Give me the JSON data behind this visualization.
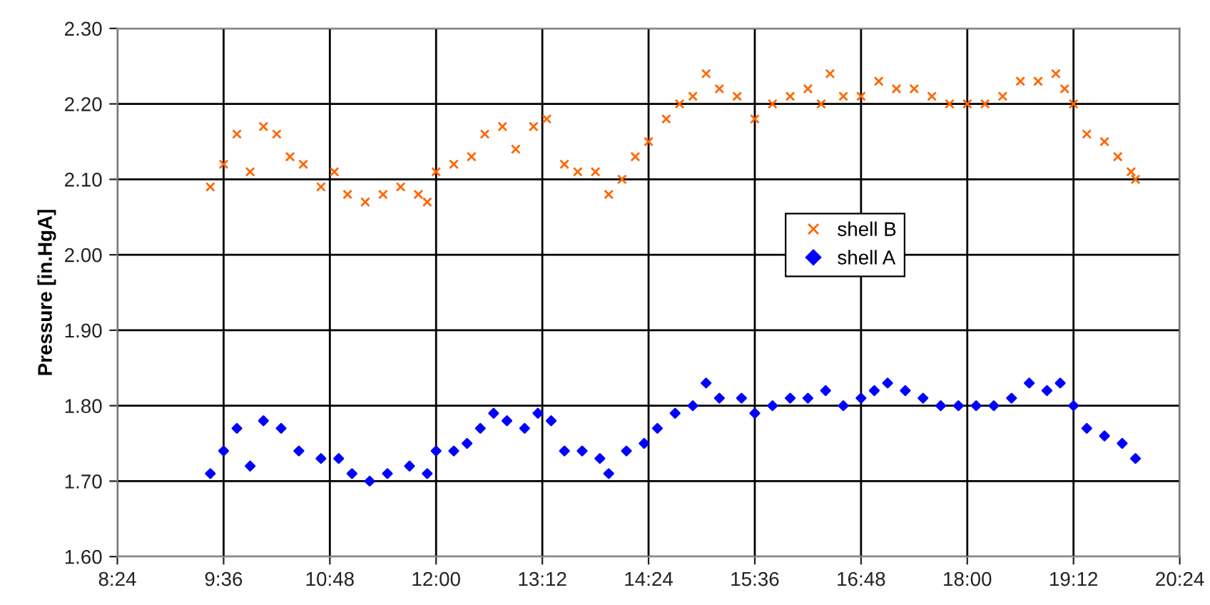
{
  "chart_data": {
    "type": "scatter",
    "ylabel": "Pressure [in.HgA]",
    "grid": true,
    "legend": "right",
    "xlim": [
      8.4,
      20.4
    ],
    "xticks": [
      {
        "value": 8.4,
        "label": "8:24"
      },
      {
        "value": 9.6,
        "label": "9:36"
      },
      {
        "value": 10.8,
        "label": "10:48"
      },
      {
        "value": 12.0,
        "label": "12:00"
      },
      {
        "value": 13.2,
        "label": "13:12"
      },
      {
        "value": 14.4,
        "label": "14:24"
      },
      {
        "value": 15.6,
        "label": "15:36"
      },
      {
        "value": 16.8,
        "label": "16:48"
      },
      {
        "value": 18.0,
        "label": "18:00"
      },
      {
        "value": 19.2,
        "label": "19:12"
      },
      {
        "value": 20.4,
        "label": "20:24"
      }
    ],
    "ylim": [
      1.6,
      2.3
    ],
    "yticks": [
      {
        "value": 1.6,
        "label": "1.60"
      },
      {
        "value": 1.7,
        "label": "1.70"
      },
      {
        "value": 1.8,
        "label": "1.80"
      },
      {
        "value": 1.9,
        "label": "1.90"
      },
      {
        "value": 2.0,
        "label": "2.00"
      },
      {
        "value": 2.1,
        "label": "2.10"
      },
      {
        "value": 2.2,
        "label": "2.20"
      },
      {
        "value": 2.3,
        "label": "2.30"
      }
    ],
    "series": [
      {
        "name": "shell B",
        "color": "#ff6600",
        "marker": "cross",
        "x": [
          9.45,
          9.6,
          9.75,
          9.9,
          10.05,
          10.2,
          10.35,
          10.5,
          10.7,
          10.85,
          11.0,
          11.2,
          11.4,
          11.6,
          11.8,
          11.9,
          12.0,
          12.2,
          12.4,
          12.55,
          12.75,
          12.9,
          13.1,
          13.25,
          13.45,
          13.6,
          13.8,
          13.95,
          14.1,
          14.25,
          14.4,
          14.6,
          14.75,
          14.9,
          15.05,
          15.2,
          15.4,
          15.6,
          15.8,
          16.0,
          16.2,
          16.35,
          16.45,
          16.6,
          16.8,
          17.0,
          17.2,
          17.4,
          17.6,
          17.8,
          18.0,
          18.2,
          18.4,
          18.6,
          18.8,
          19.0,
          19.1,
          19.2,
          19.35,
          19.55,
          19.7,
          19.85,
          19.9
        ],
        "values": [
          2.09,
          2.12,
          2.16,
          2.11,
          2.17,
          2.16,
          2.13,
          2.12,
          2.09,
          2.11,
          2.08,
          2.07,
          2.08,
          2.09,
          2.08,
          2.07,
          2.11,
          2.12,
          2.13,
          2.16,
          2.17,
          2.14,
          2.17,
          2.18,
          2.12,
          2.11,
          2.11,
          2.08,
          2.1,
          2.13,
          2.15,
          2.18,
          2.2,
          2.21,
          2.24,
          2.22,
          2.21,
          2.18,
          2.2,
          2.21,
          2.22,
          2.2,
          2.24,
          2.21,
          2.21,
          2.23,
          2.22,
          2.22,
          2.21,
          2.2,
          2.2,
          2.2,
          2.21,
          2.23,
          2.23,
          2.24,
          2.22,
          2.2,
          2.16,
          2.15,
          2.13,
          2.11,
          2.1
        ]
      },
      {
        "name": "shell A",
        "color": "#0000ff",
        "marker": "diamond",
        "x": [
          9.45,
          9.6,
          9.75,
          9.9,
          10.05,
          10.25,
          10.45,
          10.7,
          10.9,
          11.05,
          11.25,
          11.45,
          11.7,
          11.9,
          12.0,
          12.2,
          12.35,
          12.5,
          12.65,
          12.8,
          13.0,
          13.15,
          13.3,
          13.45,
          13.65,
          13.85,
          13.95,
          14.15,
          14.35,
          14.5,
          14.7,
          14.9,
          15.05,
          15.2,
          15.45,
          15.6,
          15.8,
          16.0,
          16.2,
          16.4,
          16.6,
          16.8,
          16.95,
          17.1,
          17.3,
          17.5,
          17.7,
          17.9,
          18.1,
          18.3,
          18.5,
          18.7,
          18.9,
          19.05,
          19.2,
          19.35,
          19.55,
          19.75,
          19.9
        ],
        "values": [
          1.71,
          1.74,
          1.77,
          1.72,
          1.78,
          1.77,
          1.74,
          1.73,
          1.73,
          1.71,
          1.7,
          1.71,
          1.72,
          1.71,
          1.74,
          1.74,
          1.75,
          1.77,
          1.79,
          1.78,
          1.77,
          1.79,
          1.78,
          1.74,
          1.74,
          1.73,
          1.71,
          1.74,
          1.75,
          1.77,
          1.79,
          1.8,
          1.83,
          1.81,
          1.81,
          1.79,
          1.8,
          1.81,
          1.81,
          1.82,
          1.8,
          1.81,
          1.82,
          1.83,
          1.82,
          1.81,
          1.8,
          1.8,
          1.8,
          1.8,
          1.81,
          1.83,
          1.82,
          1.83,
          1.8,
          1.77,
          1.76,
          1.75,
          1.73
        ]
      }
    ]
  }
}
